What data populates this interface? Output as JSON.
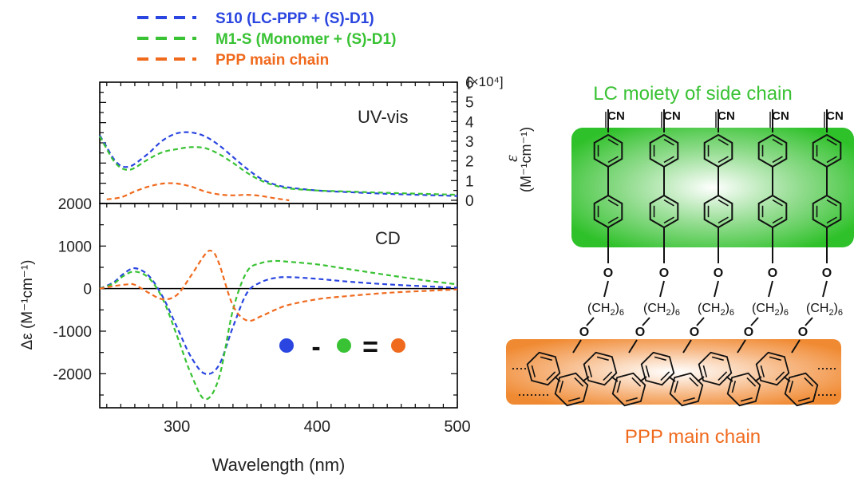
{
  "legend": [
    {
      "label": "S10 (LC-PPP + (S)-D1)",
      "color": "#2a45e0"
    },
    {
      "label": "M1-S (Monomer + (S)-D1)",
      "color": "#39c234"
    },
    {
      "label": "PPP main chain",
      "color": "#f06a1e"
    }
  ],
  "colors": {
    "blue": "#2a45e0",
    "green": "#39c234",
    "orange": "#f06a1e",
    "lc_glow": "#2fc12a",
    "ppp_glow": "#f08a32"
  },
  "equation": {
    "minus": "-",
    "equals": "="
  },
  "structure": {
    "title": "LC moiety of side chain",
    "bottom_label": "PPP main chain",
    "cn_label": "CN",
    "o_label": "O",
    "spacer_label": "(CH",
    "spacer_sub": "2",
    "spacer_close": ")",
    "spacer_n": "6"
  },
  "chart_data": [
    {
      "type": "line",
      "panel_label": "UV-vis",
      "xlabel": "Wavelength (nm)",
      "xlim": [
        245,
        500
      ],
      "ylim": [
        0,
        6
      ],
      "right_yticks": [
        "0",
        "1",
        "2",
        "3",
        "4",
        "5",
        "6"
      ],
      "ylabel_symbol": "ε",
      "ylabel_unit": "(M⁻¹cm⁻¹)",
      "multiplier": "[×10⁴]",
      "series": [
        {
          "name": "S10 (LC-PPP + (S)-D1)",
          "color": "#2a45e0",
          "x": [
            245,
            250,
            255,
            260,
            265,
            270,
            280,
            290,
            300,
            310,
            320,
            330,
            340,
            350,
            360,
            370,
            380,
            400,
            420,
            450,
            480,
            500
          ],
          "y": [
            3.3,
            2.7,
            2.1,
            1.75,
            1.7,
            1.85,
            2.4,
            3.05,
            3.4,
            3.45,
            3.25,
            2.8,
            2.2,
            1.6,
            1.1,
            0.8,
            0.65,
            0.5,
            0.42,
            0.33,
            0.26,
            0.22
          ]
        },
        {
          "name": "M1-S (Monomer + (S)-D1)",
          "color": "#39c234",
          "x": [
            245,
            250,
            255,
            260,
            265,
            270,
            280,
            290,
            300,
            310,
            320,
            330,
            340,
            350,
            360,
            370,
            380,
            400,
            420,
            450,
            480,
            500
          ],
          "y": [
            3.25,
            2.6,
            2.0,
            1.65,
            1.55,
            1.65,
            2.1,
            2.45,
            2.6,
            2.7,
            2.65,
            2.35,
            1.9,
            1.4,
            1.0,
            0.75,
            0.6,
            0.5,
            0.45,
            0.38,
            0.32,
            0.28
          ]
        },
        {
          "name": "PPP main chain",
          "color": "#f06a1e",
          "x": [
            250,
            260,
            270,
            280,
            290,
            300,
            310,
            320,
            330,
            340,
            350,
            360,
            370,
            380
          ],
          "y": [
            0.05,
            0.15,
            0.45,
            0.7,
            0.85,
            0.85,
            0.7,
            0.45,
            0.3,
            0.25,
            0.28,
            0.22,
            0.1,
            0.0
          ]
        }
      ]
    },
    {
      "type": "line",
      "panel_label": "CD",
      "xlabel": "Wavelength (nm)",
      "xlim": [
        245,
        500
      ],
      "ylim": [
        -2800,
        2000
      ],
      "xticks": [
        "300",
        "400",
        "500"
      ],
      "yticks": [
        "2000",
        "1000",
        "0",
        "-1000",
        "-2000"
      ],
      "ylabel": "Δε (M⁻¹cm⁻¹)",
      "series": [
        {
          "name": "S10 (LC-PPP + (S)-D1)",
          "color": "#2a45e0",
          "x": [
            245,
            255,
            262,
            270,
            280,
            290,
            300,
            310,
            320,
            330,
            340,
            350,
            360,
            370,
            380,
            400,
            420,
            450,
            480,
            500
          ],
          "y": [
            0,
            150,
            350,
            480,
            300,
            -200,
            -900,
            -1600,
            -2000,
            -1800,
            -900,
            -100,
            150,
            250,
            270,
            230,
            170,
            100,
            50,
            20
          ]
        },
        {
          "name": "M1-S (Monomer + (S)-D1)",
          "color": "#39c234",
          "x": [
            245,
            255,
            262,
            270,
            280,
            290,
            300,
            310,
            320,
            330,
            340,
            350,
            360,
            370,
            380,
            400,
            420,
            450,
            480,
            500
          ],
          "y": [
            0,
            120,
            300,
            400,
            250,
            -250,
            -1100,
            -2000,
            -2600,
            -2100,
            -500,
            400,
            600,
            650,
            630,
            570,
            470,
            320,
            180,
            100
          ]
        },
        {
          "name": "PPP main chain",
          "color": "#f06a1e",
          "x": [
            245,
            255,
            265,
            270,
            280,
            290,
            300,
            310,
            320,
            325,
            330,
            340,
            350,
            360,
            370,
            380,
            400,
            420,
            450,
            480,
            500
          ],
          "y": [
            0,
            60,
            100,
            90,
            -100,
            -250,
            -150,
            300,
            800,
            880,
            600,
            -400,
            -750,
            -650,
            -500,
            -380,
            -250,
            -180,
            -100,
            -50,
            -20
          ]
        }
      ]
    }
  ]
}
